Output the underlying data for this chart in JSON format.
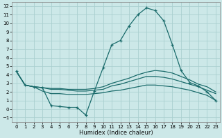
{
  "xlabel": "Humidex (Indice chaleur)",
  "background_color": "#cce8e8",
  "grid_color": "#aacfcf",
  "line_color": "#1a6b6b",
  "xlim": [
    -0.5,
    23.5
  ],
  "ylim": [
    -1.5,
    12.5
  ],
  "x_ticks": [
    0,
    1,
    2,
    3,
    4,
    5,
    6,
    7,
    8,
    9,
    10,
    11,
    12,
    13,
    14,
    15,
    16,
    17,
    18,
    19,
    20,
    21,
    22,
    23
  ],
  "y_ticks": [
    -1,
    0,
    1,
    2,
    3,
    4,
    5,
    6,
    7,
    8,
    9,
    10,
    11,
    12
  ],
  "main_x": [
    0,
    1,
    2,
    3,
    4,
    5,
    6,
    7,
    8,
    9,
    10,
    11,
    12,
    13,
    14,
    15,
    16,
    17,
    18,
    19,
    20,
    21,
    22,
    23
  ],
  "main_y": [
    4.4,
    2.8,
    2.6,
    2.5,
    0.4,
    0.3,
    0.2,
    0.2,
    -0.7,
    2.1,
    4.8,
    7.5,
    8.0,
    9.7,
    11.0,
    11.8,
    11.5,
    10.3,
    7.5,
    4.5,
    3.1,
    2.7,
    2.0,
    1.0
  ],
  "line2_x": [
    0,
    1,
    2,
    3,
    4,
    5,
    6,
    7,
    8,
    9,
    10,
    11,
    12,
    13,
    14,
    15,
    16,
    17,
    18,
    19,
    20,
    21,
    22,
    23
  ],
  "line2_y": [
    4.4,
    2.8,
    2.6,
    2.5,
    2.4,
    2.4,
    2.3,
    2.3,
    2.3,
    2.4,
    2.6,
    3.0,
    3.3,
    3.6,
    4.0,
    4.3,
    4.5,
    4.4,
    4.2,
    3.8,
    3.4,
    2.9,
    2.6,
    2.0
  ],
  "line3_x": [
    0,
    1,
    2,
    3,
    4,
    5,
    6,
    7,
    8,
    9,
    10,
    11,
    12,
    13,
    14,
    15,
    16,
    17,
    18,
    19,
    20,
    21,
    22,
    23
  ],
  "line3_y": [
    4.4,
    2.8,
    2.6,
    2.5,
    2.3,
    2.3,
    2.2,
    2.1,
    2.1,
    2.2,
    2.3,
    2.7,
    2.9,
    3.2,
    3.5,
    3.8,
    3.8,
    3.7,
    3.5,
    3.2,
    2.9,
    2.6,
    2.2,
    1.8
  ],
  "line4_x": [
    0,
    1,
    2,
    3,
    4,
    5,
    6,
    7,
    8,
    9,
    10,
    11,
    12,
    13,
    14,
    15,
    16,
    17,
    18,
    19,
    20,
    21,
    22,
    23
  ],
  "line4_y": [
    4.4,
    2.8,
    2.6,
    2.1,
    1.8,
    1.8,
    1.7,
    1.7,
    1.7,
    1.8,
    1.9,
    2.1,
    2.2,
    2.4,
    2.6,
    2.8,
    2.8,
    2.7,
    2.6,
    2.4,
    2.2,
    1.9,
    1.6,
    1.0
  ],
  "tick_fontsize": 5,
  "xlabel_fontsize": 6
}
